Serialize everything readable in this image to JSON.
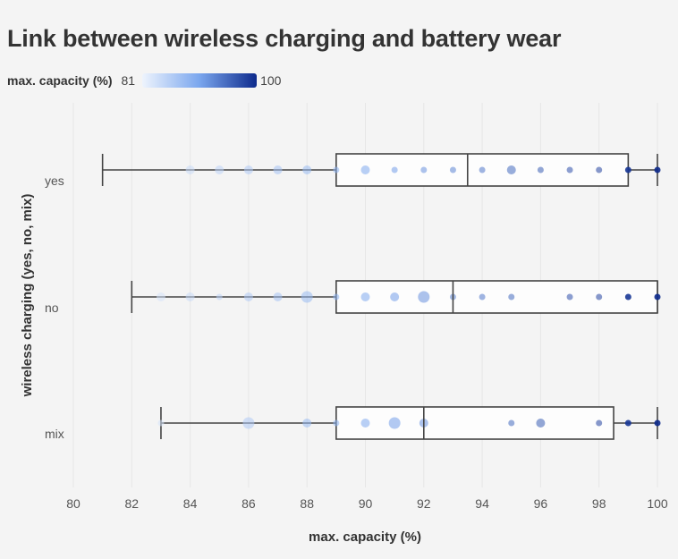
{
  "chart_data": {
    "type": "boxplot",
    "title": "Link between wireless charging and battery wear",
    "xlabel": "max. capacity (%)",
    "ylabel": "wireless charging (yes, no, mix)",
    "xlim": [
      80,
      100
    ],
    "xticks": [
      80,
      82,
      84,
      86,
      88,
      90,
      92,
      94,
      96,
      98,
      100
    ],
    "grid": "vertical",
    "legend": {
      "title": "max. capacity (%)",
      "min": 81,
      "max": 100,
      "color_low": "#eef4fd",
      "color_high": "#0d2a8c",
      "placement": "top-left"
    },
    "categories": [
      "yes",
      "no",
      "mix"
    ],
    "boxes": [
      {
        "category": "yes",
        "min": 81,
        "q1": 89,
        "median": 93.5,
        "q3": 99,
        "max": 100
      },
      {
        "category": "no",
        "min": 82,
        "q1": 89,
        "median": 93,
        "q3": 100,
        "max": 100
      },
      {
        "category": "mix",
        "min": 83,
        "q1": 89,
        "median": 92,
        "q3": 98.5,
        "max": 100
      }
    ],
    "points": [
      {
        "category": "yes",
        "values": [
          84,
          85,
          86,
          87,
          88,
          89,
          90,
          91,
          92,
          93,
          94,
          95,
          96,
          97,
          98,
          99,
          100
        ],
        "sizes": [
          "m",
          "m",
          "m",
          "m",
          "m",
          "s",
          "m",
          "s",
          "s",
          "s",
          "s",
          "m",
          "s",
          "s",
          "s",
          "s",
          "s"
        ]
      },
      {
        "category": "no",
        "values": [
          83,
          84,
          85,
          86,
          87,
          88,
          89,
          90,
          91,
          92,
          93,
          94,
          95,
          97,
          98,
          99,
          100
        ],
        "sizes": [
          "m",
          "m",
          "s",
          "m",
          "m",
          "l",
          "s",
          "m",
          "m",
          "l",
          "s",
          "s",
          "s",
          "s",
          "s",
          "s",
          "s"
        ]
      },
      {
        "category": "mix",
        "values": [
          83,
          86,
          88,
          89,
          90,
          91,
          92,
          95,
          96,
          98,
          99,
          100
        ],
        "sizes": [
          "s",
          "l",
          "m",
          "s",
          "m",
          "l",
          "m",
          "s",
          "m",
          "s",
          "s",
          "s"
        ]
      }
    ]
  }
}
